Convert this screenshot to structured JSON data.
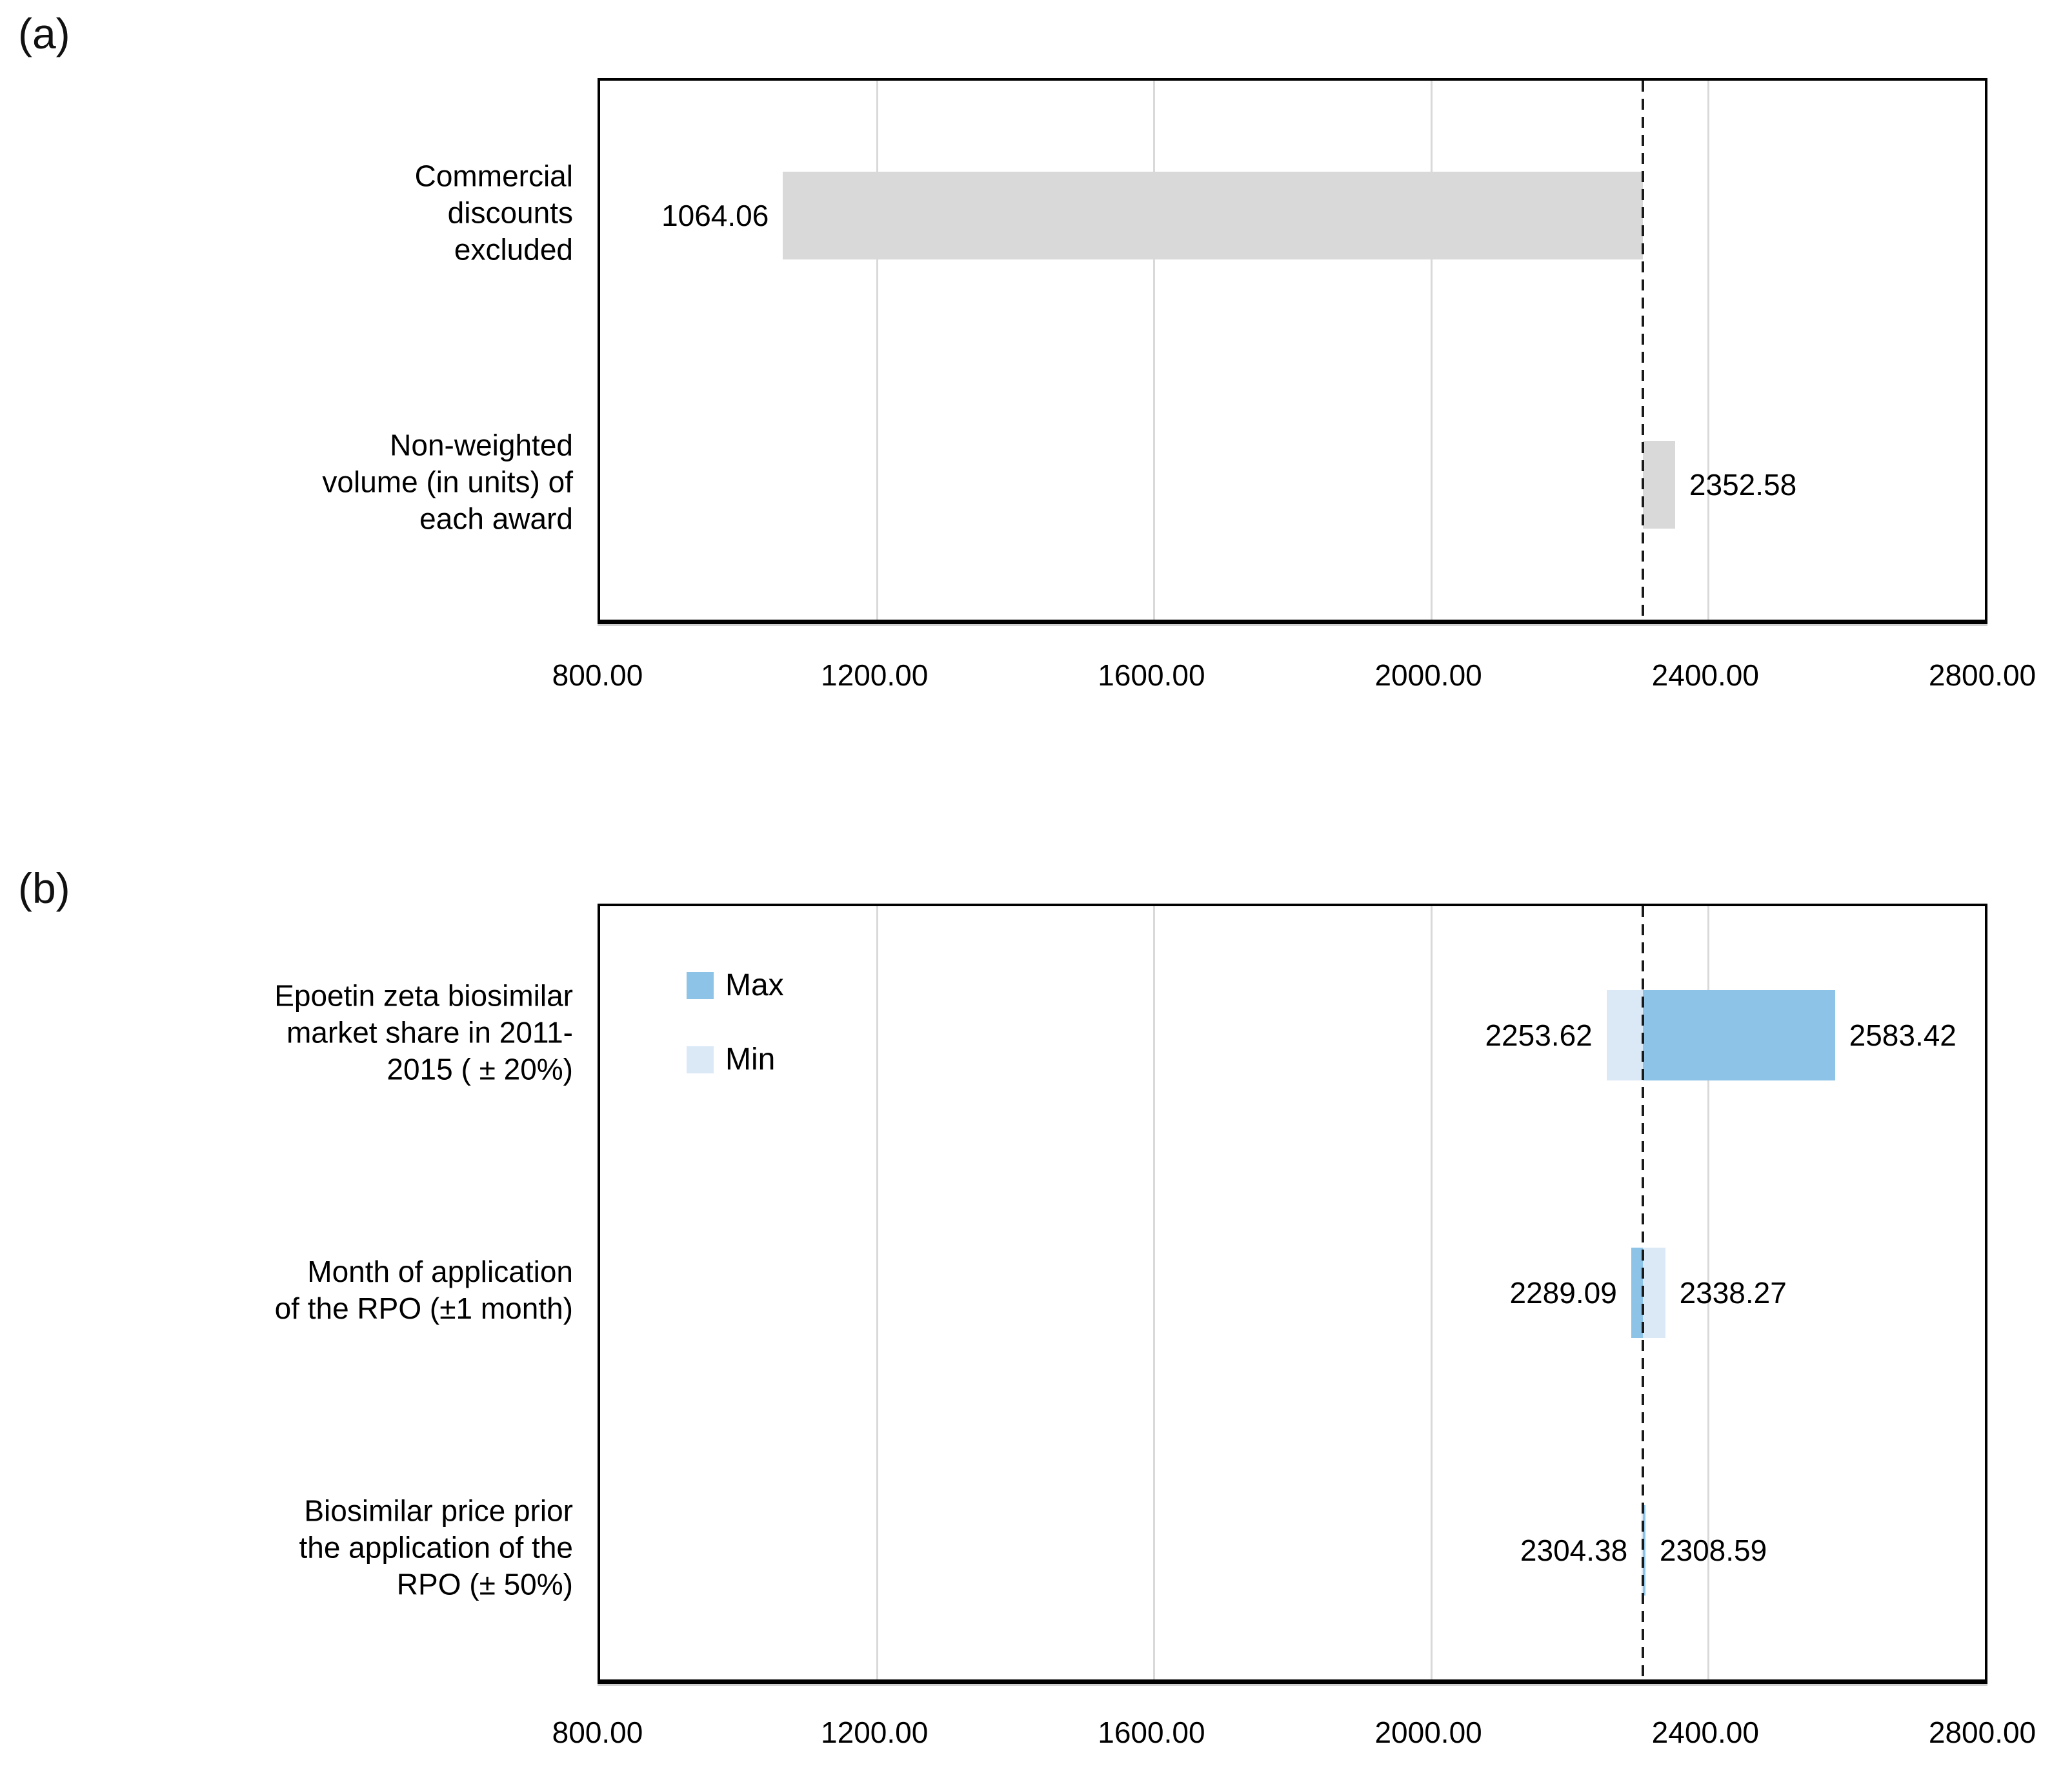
{
  "figure": {
    "background": "#ffffff"
  },
  "chart_data": [
    {
      "id": "a",
      "tag": "(a)",
      "type": "bar",
      "orientation": "horizontal",
      "axis": {
        "min": 800,
        "max": 2800,
        "grid": true,
        "ticks": [
          {
            "value": 800,
            "label": "800.00"
          },
          {
            "value": 1200,
            "label": "1200.00"
          },
          {
            "value": 1600,
            "label": "1600.00"
          },
          {
            "value": 2000,
            "label": "2000.00"
          },
          {
            "value": 2400,
            "label": "2400.00"
          },
          {
            "value": 2800,
            "label": "2800.00"
          }
        ]
      },
      "baseline_value": 2306.5,
      "baseline_style": "dashed",
      "bar_color": "#d9d9d9",
      "rows": [
        {
          "category": "Commercial discounts excluded",
          "category_lines": [
            "Commercial",
            "discounts",
            "excluded"
          ],
          "segments": [
            {
              "value": 1064.06,
              "label": "1064.06",
              "color": "#d9d9d9",
              "label_side": "left"
            }
          ]
        },
        {
          "category": "Non-weighted volume (in units) of each award",
          "category_lines": [
            "Non-weighted",
            "volume (in units) of",
            "each award"
          ],
          "segments": [
            {
              "value": 2352.58,
              "label": "2352.58",
              "color": "#d9d9d9",
              "label_side": "right"
            }
          ]
        }
      ]
    },
    {
      "id": "b",
      "tag": "(b)",
      "type": "tornado",
      "orientation": "horizontal",
      "axis": {
        "min": 800,
        "max": 2800,
        "grid": true,
        "ticks": [
          {
            "value": 800,
            "label": "800.00"
          },
          {
            "value": 1200,
            "label": "1200.00"
          },
          {
            "value": 1600,
            "label": "1600.00"
          },
          {
            "value": 2000,
            "label": "2000.00"
          },
          {
            "value": 2400,
            "label": "2400.00"
          },
          {
            "value": 2800,
            "label": "2800.00"
          }
        ]
      },
      "baseline_value": 2306.5,
      "baseline_style": "dashed",
      "legend": {
        "position": "inside top-left",
        "items": [
          {
            "label": "Max",
            "color": "#8dc3e6"
          },
          {
            "label": "Min",
            "color": "#dbe9f6"
          }
        ]
      },
      "rows": [
        {
          "category": "Epoetin zeta biosimilar market share in 2011-2015 ( ± 20%)",
          "category_lines": [
            "Epoetin zeta biosimilar",
            "market share in 2011-",
            "2015 ( ± 20%)"
          ],
          "segments": [
            {
              "value": 2253.62,
              "label": "2253.62",
              "series": "Min",
              "color": "#dbe9f6",
              "label_side": "left"
            },
            {
              "value": 2583.42,
              "label": "2583.42",
              "series": "Max",
              "color": "#8dc3e6",
              "label_side": "right"
            }
          ]
        },
        {
          "category": "Month of application of the RPO (±1 month)",
          "category_lines": [
            "Month of application",
            "of the RPO (±1 month)"
          ],
          "segments": [
            {
              "value": 2289.09,
              "label": "2289.09",
              "series": "Max",
              "color": "#8dc3e6",
              "label_side": "left"
            },
            {
              "value": 2338.27,
              "label": "2338.27",
              "series": "Min",
              "color": "#dbe9f6",
              "label_side": "right"
            }
          ]
        },
        {
          "category": "Biosimilar price prior the application of the RPO (± 50%)",
          "category_lines": [
            "Biosimilar price prior",
            "the application of the",
            "RPO (± 50%)"
          ],
          "segments": [
            {
              "value": 2304.38,
              "label": "2304.38",
              "series": "Min",
              "color": "#dbe9f6",
              "label_side": "left"
            },
            {
              "value": 2308.59,
              "label": "2308.59",
              "series": "Max",
              "color": "#8dc3e6",
              "label_side": "right"
            }
          ]
        }
      ]
    }
  ]
}
